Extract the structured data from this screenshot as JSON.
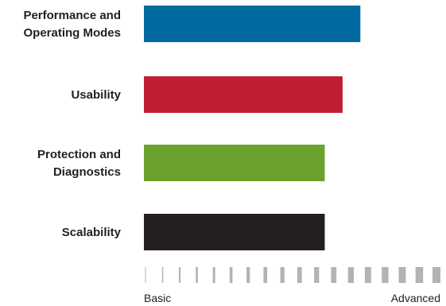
{
  "chart_data": {
    "type": "bar",
    "orientation": "horizontal",
    "categories": [
      [
        "Performance and",
        "Operating Modes"
      ],
      [
        "Usability"
      ],
      [
        "Protection and",
        "Diagnostics"
      ],
      [
        "Scalability"
      ]
    ],
    "values": [
      0.73,
      0.67,
      0.61,
      0.61
    ],
    "colors": [
      "#006aa1",
      "#c01f33",
      "#6ba12f",
      "#231f20"
    ],
    "xlim": [
      0,
      1
    ],
    "x_axis": {
      "start_label": "Basic",
      "end_label": "Advanced",
      "tick_count": 18,
      "tick_style": "graduated-width",
      "tick_color": "#b3b3b3"
    },
    "grid": false,
    "legend": "none"
  }
}
